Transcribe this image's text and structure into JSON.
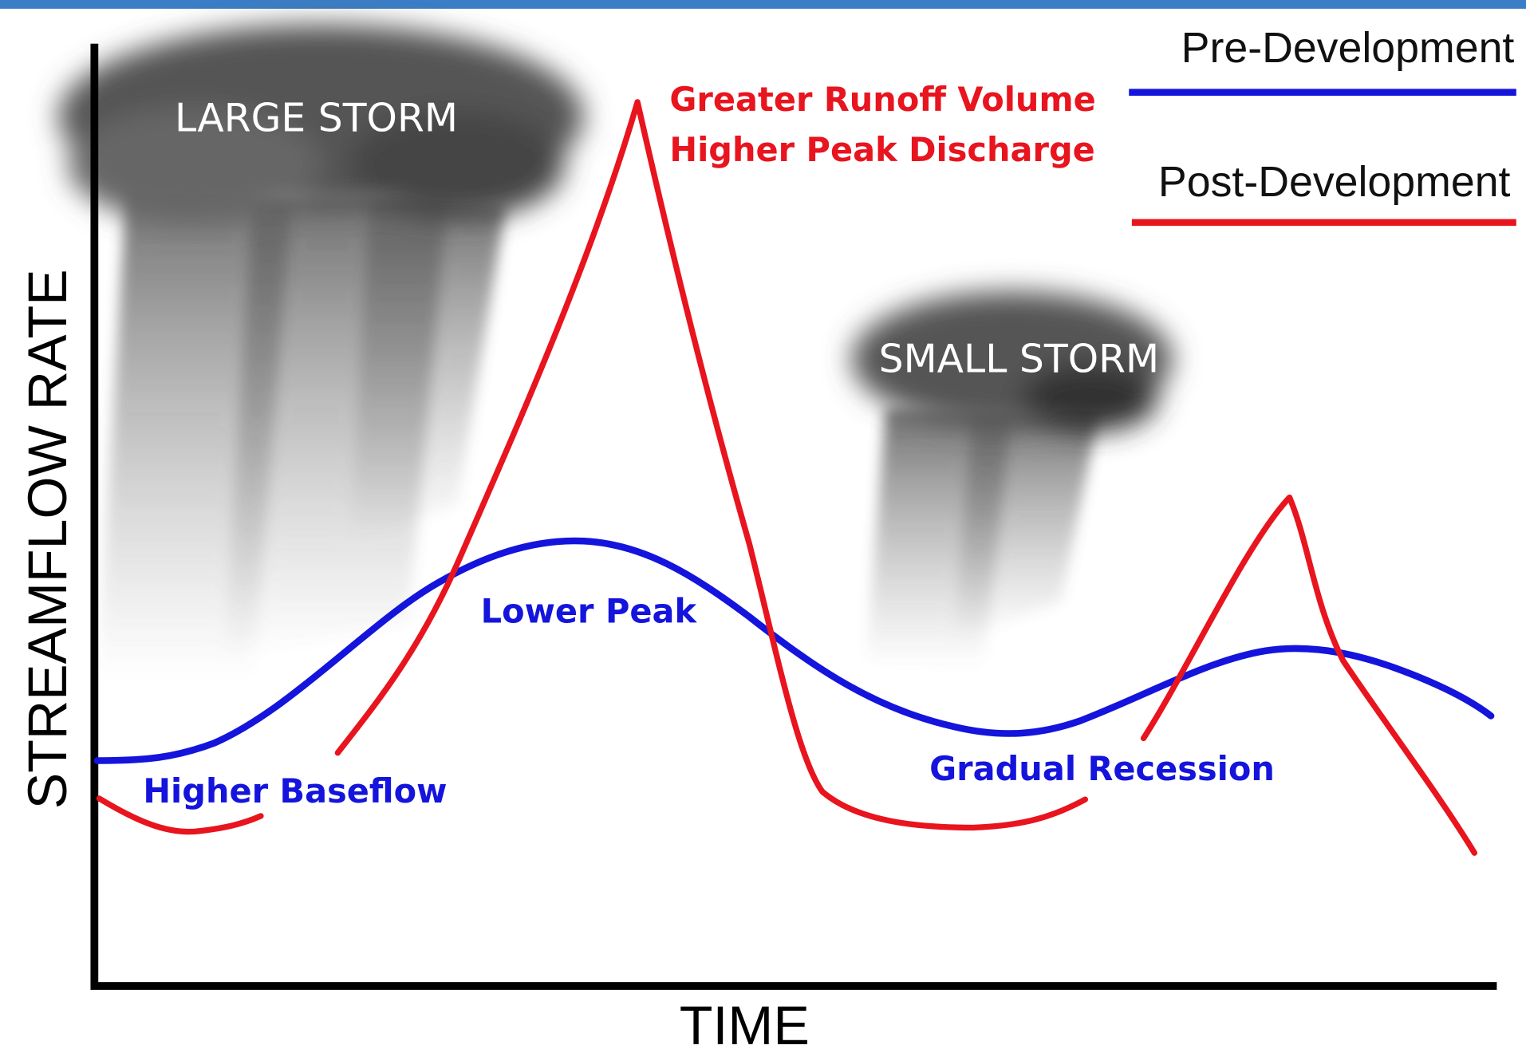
{
  "axes": {
    "y_label": "STREAMFLOW RATE",
    "x_label": "TIME"
  },
  "legend": [
    {
      "label": "Pre-Development"
    },
    {
      "label": "Post-Development"
    }
  ],
  "storms": [
    {
      "label": "LARGE STORM"
    },
    {
      "label": "SMALL STORM"
    }
  ],
  "annotations": {
    "peak_post": [
      "Greater Runoff Volume",
      "Higher Peak Discharge"
    ],
    "peak_pre": "Lower Peak",
    "baseflow": "Higher Baseflow",
    "recession": "Gradual Recession"
  }
}
